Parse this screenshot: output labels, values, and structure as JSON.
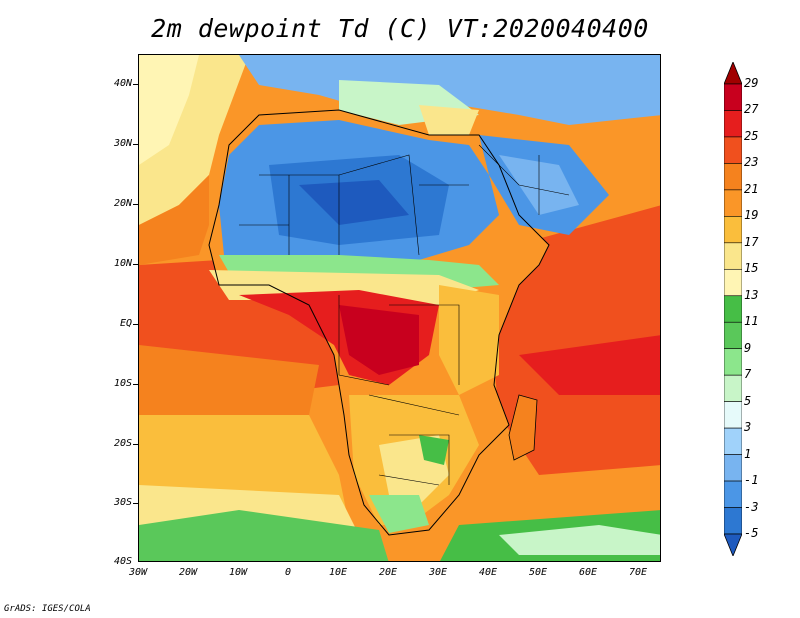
{
  "title": "2m dewpoint Td (C) VT:2020040400",
  "footer": "GrADS: IGES/COLA",
  "map": {
    "lon_labels": [
      "30W",
      "20W",
      "10W",
      "0",
      "10E",
      "20E",
      "30E",
      "40E",
      "50E",
      "60E",
      "70E"
    ],
    "lat_labels": [
      "40N",
      "30N",
      "20N",
      "10N",
      "EQ",
      "10S",
      "20S",
      "30S",
      "40S"
    ],
    "lon_range": [
      -30,
      75
    ],
    "lat_range": [
      -40,
      45
    ]
  },
  "colorbar": {
    "labels": [
      "29",
      "27",
      "25",
      "23",
      "21",
      "19",
      "17",
      "15",
      "13",
      "11",
      "9",
      "7",
      "5",
      "3",
      "1",
      "-1",
      "-3",
      "-5"
    ],
    "colors": [
      "#a00000",
      "#c8001e",
      "#e61e1e",
      "#f0501e",
      "#f5821e",
      "#fa9628",
      "#fabe3c",
      "#fae68c",
      "#fff5b4",
      "#46be46",
      "#5ac85a",
      "#8ce68c",
      "#c8f5c8",
      "#e6fafa",
      "#a0d2fa",
      "#78b4f0",
      "#4b96e6",
      "#2d78d2",
      "#1e5abe"
    ],
    "arrow_top_color": "#a00000",
    "arrow_bottom_color": "#1e5abe"
  },
  "colors": {
    "ocean_warm": "#f0501e",
    "sahara_dry": "#4b96e6",
    "humid_core": "#c8001e",
    "subtropical": "#fa9628",
    "temperate": "#fae68c",
    "moist_green": "#46be46"
  }
}
